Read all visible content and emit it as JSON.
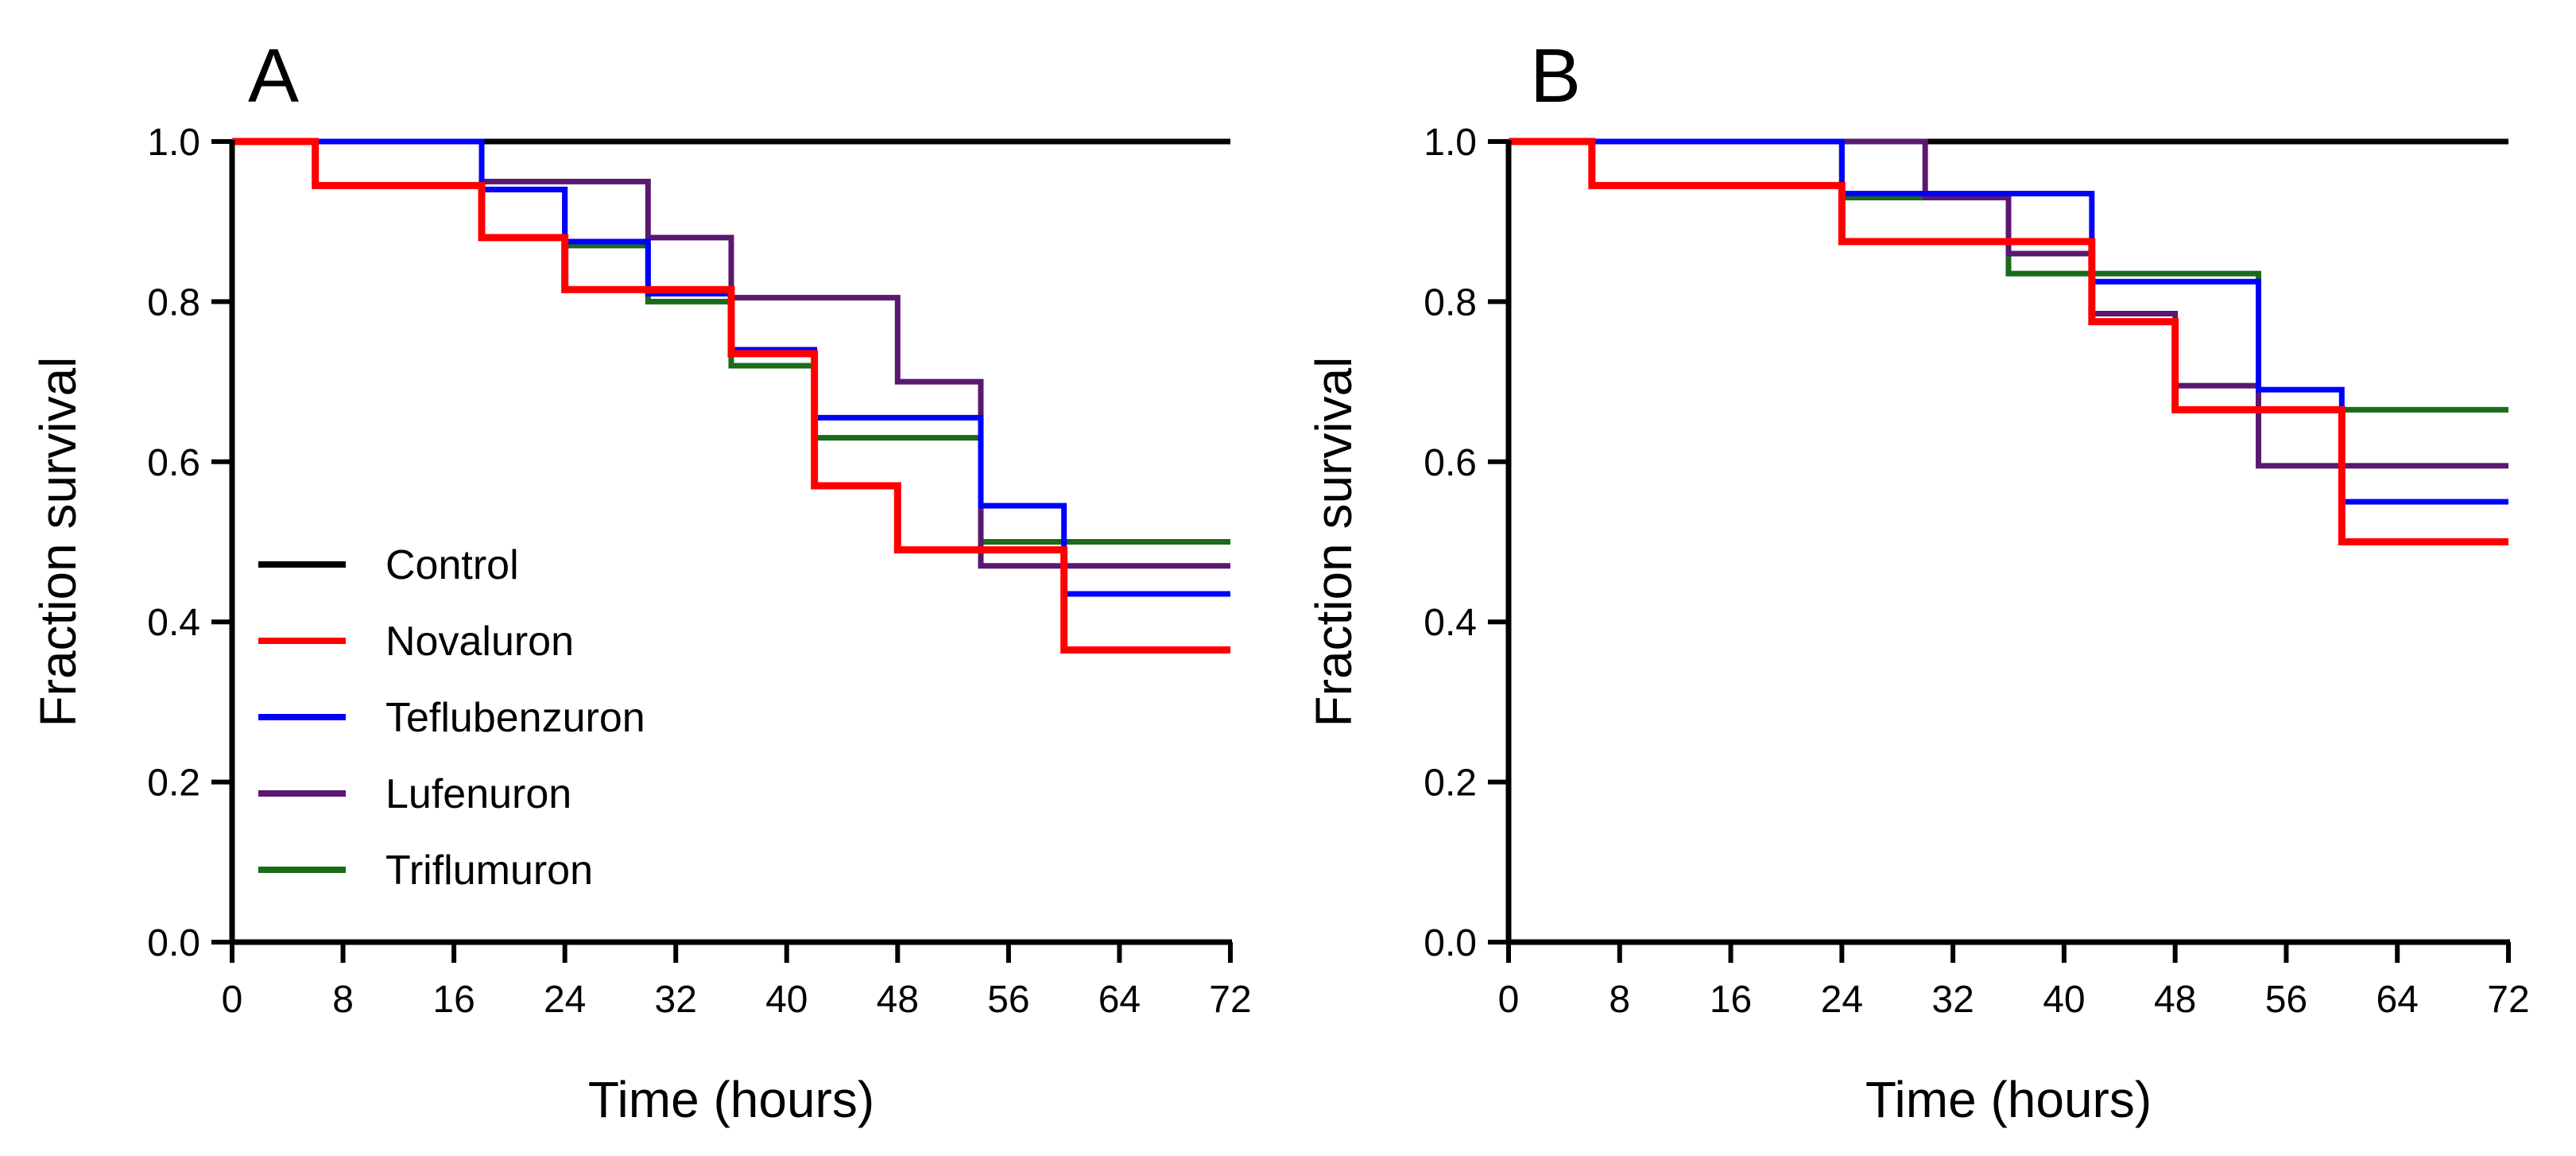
{
  "colors": {
    "Control": "#000000",
    "Novaluron": "#ff0000",
    "Teflubenzuron": "#0000ff",
    "Lufenuron": "#5a1870",
    "Triflumuron": "#1a6b1a"
  },
  "chart_data": [
    {
      "type": "line",
      "style": "step",
      "panel_label": "A",
      "title": "",
      "xlabel": "Time (hours)",
      "ylabel": "Fraction survival",
      "xlim": [
        0,
        72
      ],
      "ylim": [
        0,
        1
      ],
      "x_ticks": [
        "0",
        "8",
        "16",
        "24",
        "32",
        "40",
        "48",
        "56",
        "64",
        "72"
      ],
      "y_ticks": [
        "0.0",
        "0.2",
        "0.4",
        "0.6",
        "0.8",
        "1.0"
      ],
      "legend": [
        "Control",
        "Novaluron",
        "Teflubenzuron",
        "Lufenuron",
        "Triflumuron"
      ],
      "legend_position": "bottom-left",
      "series": [
        {
          "name": "Control",
          "x": [
            0,
            72
          ],
          "y": [
            1.0,
            1.0
          ]
        },
        {
          "name": "Triflumuron",
          "x": [
            0,
            18,
            24,
            30,
            36,
            42,
            54,
            72
          ],
          "y": [
            1.0,
            0.94,
            0.87,
            0.8,
            0.72,
            0.63,
            0.5,
            0.5
          ]
        },
        {
          "name": "Lufenuron",
          "x": [
            0,
            18,
            30,
            36,
            48,
            54,
            72
          ],
          "y": [
            1.0,
            0.95,
            0.88,
            0.805,
            0.7,
            0.47,
            0.47
          ]
        },
        {
          "name": "Teflubenzuron",
          "x": [
            0,
            18,
            24,
            30,
            36,
            42,
            54,
            60,
            72
          ],
          "y": [
            1.0,
            0.94,
            0.875,
            0.81,
            0.74,
            0.655,
            0.545,
            0.435,
            0.435
          ]
        },
        {
          "name": "Novaluron",
          "x": [
            0,
            6,
            18,
            24,
            36,
            42,
            48,
            60,
            72
          ],
          "y": [
            1.0,
            0.945,
            0.88,
            0.815,
            0.735,
            0.57,
            0.49,
            0.365,
            0.365
          ]
        }
      ]
    },
    {
      "type": "line",
      "style": "step",
      "panel_label": "B",
      "title": "",
      "xlabel": "Time (hours)",
      "ylabel": "Fraction survival",
      "xlim": [
        0,
        72
      ],
      "ylim": [
        0,
        1
      ],
      "x_ticks": [
        "0",
        "8",
        "16",
        "24",
        "32",
        "40",
        "48",
        "56",
        "64",
        "72"
      ],
      "y_ticks": [
        "0.0",
        "0.2",
        "0.4",
        "0.6",
        "0.8",
        "1.0"
      ],
      "series": [
        {
          "name": "Control",
          "x": [
            0,
            72
          ],
          "y": [
            1.0,
            1.0
          ]
        },
        {
          "name": "Triflumuron",
          "x": [
            0,
            24,
            36,
            54,
            72
          ],
          "y": [
            1.0,
            0.93,
            0.835,
            0.665,
            0.665
          ]
        },
        {
          "name": "Lufenuron",
          "x": [
            0,
            30,
            36,
            42,
            48,
            54,
            72
          ],
          "y": [
            1.0,
            0.93,
            0.86,
            0.785,
            0.695,
            0.595,
            0.595
          ]
        },
        {
          "name": "Teflubenzuron",
          "x": [
            0,
            24,
            42,
            54,
            60,
            72
          ],
          "y": [
            1.0,
            0.935,
            0.825,
            0.69,
            0.55,
            0.55
          ]
        },
        {
          "name": "Novaluron",
          "x": [
            0,
            6,
            24,
            42,
            48,
            60,
            72
          ],
          "y": [
            1.0,
            0.945,
            0.875,
            0.775,
            0.665,
            0.5,
            0.5
          ]
        }
      ]
    }
  ]
}
